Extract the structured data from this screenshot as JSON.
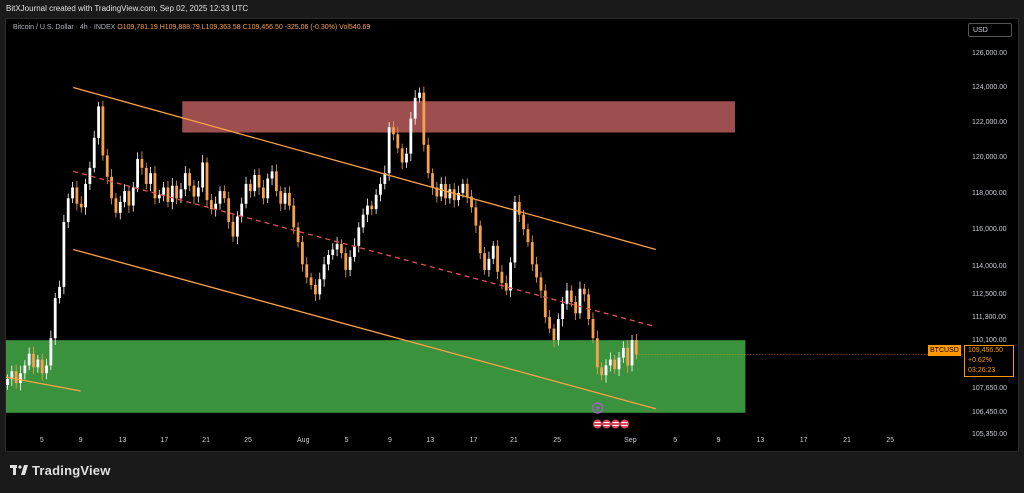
{
  "header": {
    "title": "BitXJournal created with TradingView.com, Sep 02, 2025 12:33 UTC"
  },
  "legend": {
    "symbol": "Bitcoin / U.S. Dollar · 4h · INDEX",
    "open": "O109,781.19",
    "high": "H109,888.79",
    "low": "L109,363.58",
    "close": "C109,456.50",
    "change": "-325.06 (-0.30%)",
    "volume": "Vol540.69"
  },
  "currency_button": "USD",
  "price_label": {
    "symbol": "BTCUSD",
    "price": "109,456.50",
    "change": "+0.62%",
    "countdown": "03:26:23"
  },
  "brand": "TradingView",
  "colors": {
    "up": "#ffffff",
    "down": "#f7a14a",
    "resistance": "#b85c5c",
    "support": "#4caf50",
    "channel": "#f7a14a",
    "price_tag": "#ff9800"
  },
  "chart_data": {
    "type": "candlestick",
    "x_tick_labels": [
      "5",
      "9",
      "13",
      "17",
      "21",
      "25",
      "Aug",
      "5",
      "9",
      "13",
      "17",
      "21",
      "25",
      "Sep",
      "5",
      "9",
      "13",
      "17",
      "21",
      "25"
    ],
    "y_tick_labels": [
      "126,000.00",
      "124,000.00",
      "122,000.00",
      "120,000.00",
      "118,000.00",
      "116,000.00",
      "114,000.00",
      "112,500.00",
      "111,300.00",
      "110,100.00",
      "107,650.00",
      "106,450.00",
      "105,350.00"
    ],
    "y_axis": "log",
    "ylim": [
      104900,
      127500
    ],
    "xlim": [
      0,
      64
    ],
    "last_close": 109456.5,
    "zones": [
      {
        "name": "resistance",
        "x_start": 11.8,
        "x_end": 48.8,
        "y_low": 121500,
        "y_high": 123300,
        "color": "#b85c5c"
      },
      {
        "name": "support",
        "x_start": 0,
        "x_end": 49.5,
        "y_low": 106500,
        "y_high": 110200,
        "color": "#3d9a40"
      }
    ],
    "trendlines": [
      {
        "name": "channel-top",
        "x1": 4.5,
        "y1": 124100,
        "x2": 43.5,
        "y2": 115000,
        "style": "solid"
      },
      {
        "name": "channel-mid",
        "x1": 4.5,
        "y1": 119300,
        "x2": 43.5,
        "y2": 110900,
        "style": "dashed"
      },
      {
        "name": "channel-bottom",
        "x1": 4.5,
        "y1": 115000,
        "x2": 43.5,
        "y2": 106700,
        "style": "solid"
      },
      {
        "name": "early-support",
        "x1": 0,
        "y1": 108300,
        "x2": 5,
        "y2": 107600,
        "style": "solid"
      }
    ],
    "series": [
      {
        "values": [
          108200,
          108600,
          108000,
          108500,
          108900,
          109500,
          108800,
          109200,
          108500,
          108900,
          110300,
          112400,
          113000,
          116500,
          117800,
          118400,
          117500,
          117300,
          118600,
          119500,
          121200,
          123000,
          120200,
          119000,
          117800,
          117000,
          117600,
          118200,
          117400,
          118400,
          120000,
          119500,
          118600,
          119200,
          117800,
          118000,
          118400,
          117600,
          118500,
          117800,
          118300,
          119200,
          118500,
          117900,
          118400,
          119800,
          117700,
          117200,
          117500,
          118200,
          117800,
          116500,
          115700,
          116800,
          117500,
          118600,
          118200,
          119100,
          118400,
          117800,
          118900,
          119300,
          118200,
          117500,
          118100,
          117400,
          116200,
          115400,
          114200,
          113500,
          113100,
          112600,
          113400,
          114200,
          114700,
          115000,
          115300,
          114800,
          113900,
          114600,
          115200,
          116200,
          116900,
          117400,
          117200,
          118000,
          118600,
          119200,
          121800,
          121400,
          120600,
          119800,
          120300,
          122300,
          123500,
          123800,
          120800,
          119200,
          118400,
          117900,
          118600,
          117800,
          118300,
          117700,
          118100,
          118600,
          117900,
          117300,
          116300,
          114800,
          113900,
          114500,
          115200,
          113800,
          113200,
          112800,
          114300,
          117600,
          116900,
          116100,
          115400,
          114200,
          113500,
          112800,
          111400,
          110800,
          110200,
          111300,
          112100,
          112800,
          112200,
          111600,
          112900,
          112600,
          111300,
          110300,
          108800,
          108400,
          108900,
          109200,
          108700,
          109300,
          109800,
          108900,
          110200,
          109456.5
        ]
      }
    ]
  }
}
